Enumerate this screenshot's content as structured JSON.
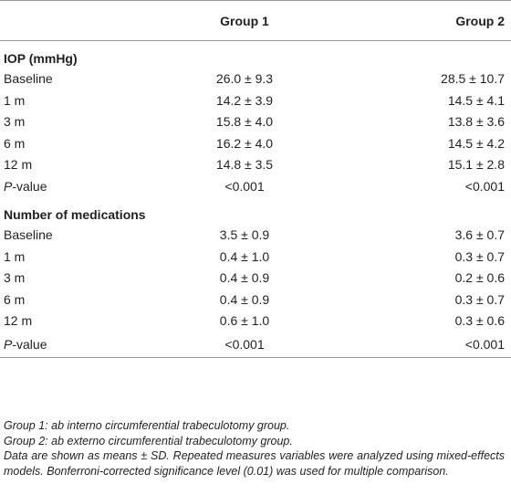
{
  "table": {
    "header": [
      "Group 1",
      "Group 2"
    ],
    "sections": [
      {
        "title": "IOP (mmHg)",
        "rows": [
          [
            "Baseline",
            "26.0 ± 9.3",
            "28.5 ± 10.7"
          ],
          [
            "1 m",
            "14.2 ± 3.9",
            "14.5 ± 4.1"
          ],
          [
            "3 m",
            "15.8 ± 4.0",
            "13.8 ± 3.6"
          ],
          [
            "6 m",
            "16.2 ± 4.0",
            "14.5 ± 4.2"
          ],
          [
            "12 m",
            "14.8 ± 3.5",
            "15.1 ± 2.8"
          ],
          [
            [
              "P",
              "-value"
            ],
            "<0.001",
            "<0.001"
          ]
        ]
      },
      {
        "title": "Number of medications",
        "rows": [
          [
            "Baseline",
            "3.5 ± 0.9",
            "3.6 ± 0.7"
          ],
          [
            "1 m",
            "0.4 ± 1.0",
            "0.3 ± 0.7"
          ],
          [
            "3 m",
            "0.4 ± 0.9",
            "0.2 ± 0.6"
          ],
          [
            "6 m",
            "0.4 ± 0.9",
            "0.3 ± 0.7"
          ],
          [
            "12 m",
            "0.6 ± 1.0",
            "0.3 ± 0.6"
          ],
          [
            [
              "P",
              "-value"
            ],
            "<0.001",
            "<0.001"
          ]
        ]
      }
    ]
  },
  "notes": [
    "Group 1: ab interno circumferential trabeculotomy group.",
    "Group 2: ab externo circumferential trabeculotomy group.",
    "Data are shown as means ± SD. Repeated measures variables were analyzed using mixed-effects models. Bonferroni-corrected significance level (0.01) was used for multiple comparison."
  ]
}
